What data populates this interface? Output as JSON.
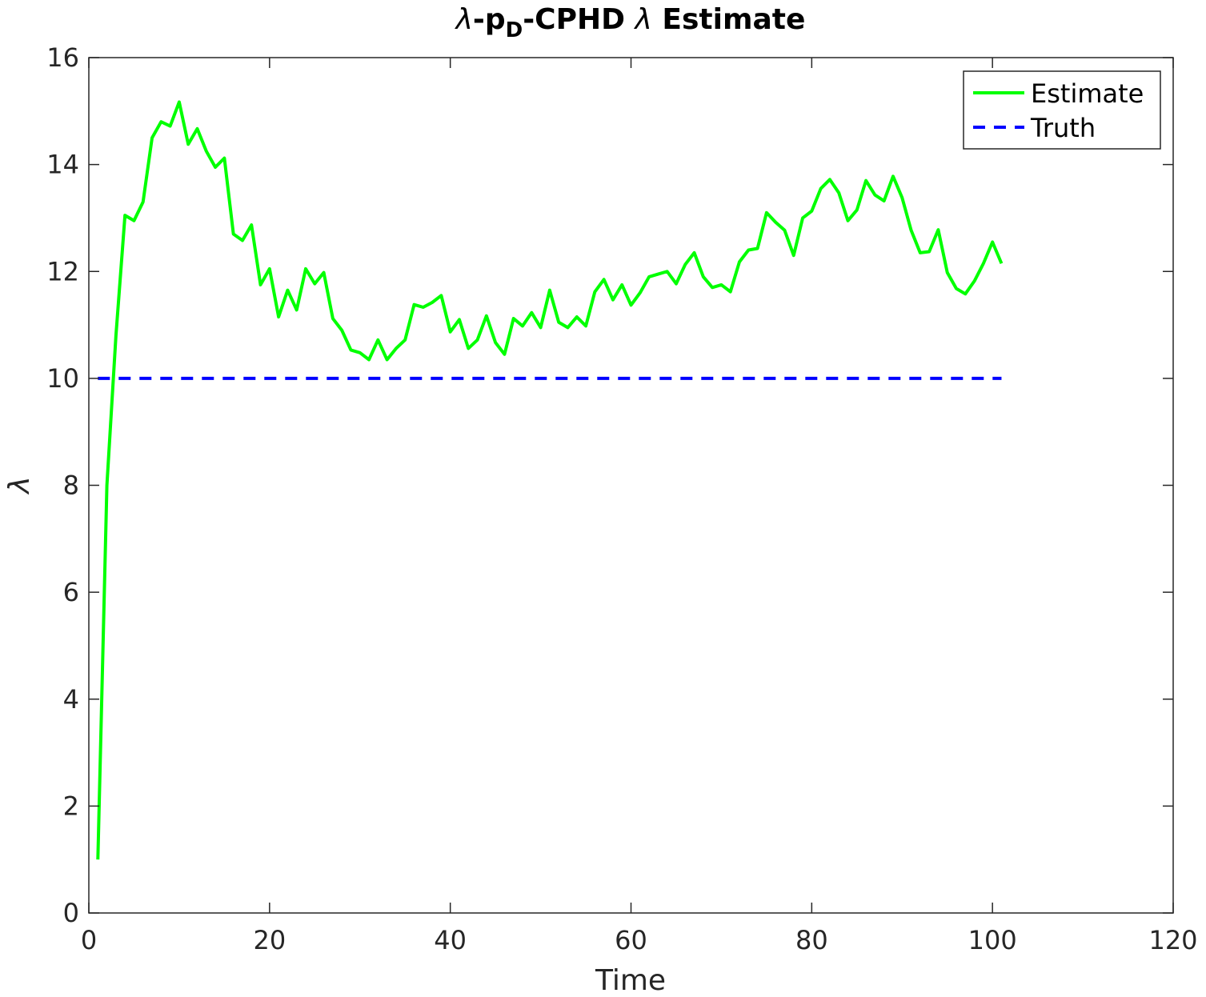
{
  "chart_data": {
    "type": "line",
    "title": {
      "sym1": "λ",
      "part1": "-p",
      "sub": "D",
      "part2": "-CPHD ",
      "sym2": "λ",
      "part3": " Estimate"
    },
    "xlabel": "Time",
    "ylabel": "λ",
    "xlim": [
      0,
      120
    ],
    "ylim": [
      0,
      16
    ],
    "xticks": [
      0,
      20,
      40,
      60,
      80,
      100,
      120
    ],
    "yticks": [
      0,
      2,
      4,
      6,
      8,
      10,
      12,
      14,
      16
    ],
    "grid": false,
    "legend_position": "top-right",
    "series": [
      {
        "name": "Estimate",
        "color": "#00ff00",
        "style": "solid",
        "x": [
          1,
          2,
          3,
          4,
          5,
          6,
          7,
          8,
          9,
          10,
          11,
          12,
          13,
          14,
          15,
          16,
          17,
          18,
          19,
          20,
          21,
          22,
          23,
          24,
          25,
          26,
          27,
          28,
          29,
          30,
          31,
          32,
          33,
          34,
          35,
          36,
          37,
          38,
          39,
          40,
          41,
          42,
          43,
          44,
          45,
          46,
          47,
          48,
          49,
          50,
          51,
          52,
          53,
          54,
          55,
          56,
          57,
          58,
          59,
          60,
          61,
          62,
          63,
          64,
          65,
          66,
          67,
          68,
          69,
          70,
          71,
          72,
          73,
          74,
          75,
          76,
          77,
          78,
          79,
          80,
          81,
          82,
          83,
          84,
          85,
          86,
          87,
          88,
          89,
          90,
          91,
          92,
          93,
          94,
          95,
          96,
          97,
          98,
          99,
          100,
          101
        ],
        "y": [
          1.0,
          8.0,
          10.8,
          13.05,
          12.95,
          13.3,
          14.5,
          14.8,
          14.72,
          15.17,
          14.38,
          14.67,
          14.25,
          13.95,
          14.12,
          12.7,
          12.58,
          12.87,
          11.75,
          12.05,
          11.15,
          11.65,
          11.28,
          12.05,
          11.77,
          11.98,
          11.12,
          10.9,
          10.53,
          10.48,
          10.35,
          10.72,
          10.35,
          10.56,
          10.72,
          11.38,
          11.33,
          11.42,
          11.55,
          10.87,
          11.1,
          10.56,
          10.72,
          11.17,
          10.67,
          10.45,
          11.12,
          10.98,
          11.23,
          10.95,
          11.65,
          11.05,
          10.95,
          11.15,
          10.98,
          11.62,
          11.85,
          11.47,
          11.75,
          11.37,
          11.6,
          11.9,
          11.95,
          12.0,
          11.77,
          12.13,
          12.35,
          11.9,
          11.7,
          11.75,
          11.62,
          12.18,
          12.4,
          12.43,
          13.1,
          12.92,
          12.77,
          12.3,
          13.0,
          13.13,
          13.55,
          13.72,
          13.47,
          12.95,
          13.15,
          13.7,
          13.43,
          13.32,
          13.78,
          13.38,
          12.77,
          12.35,
          12.37,
          12.78,
          11.98,
          11.68,
          11.58,
          11.82,
          12.15,
          12.55,
          12.15
        ]
      },
      {
        "name": "Truth",
        "color": "#0000ff",
        "style": "dashed",
        "x": [
          1,
          101
        ],
        "y": [
          10,
          10
        ]
      }
    ]
  }
}
